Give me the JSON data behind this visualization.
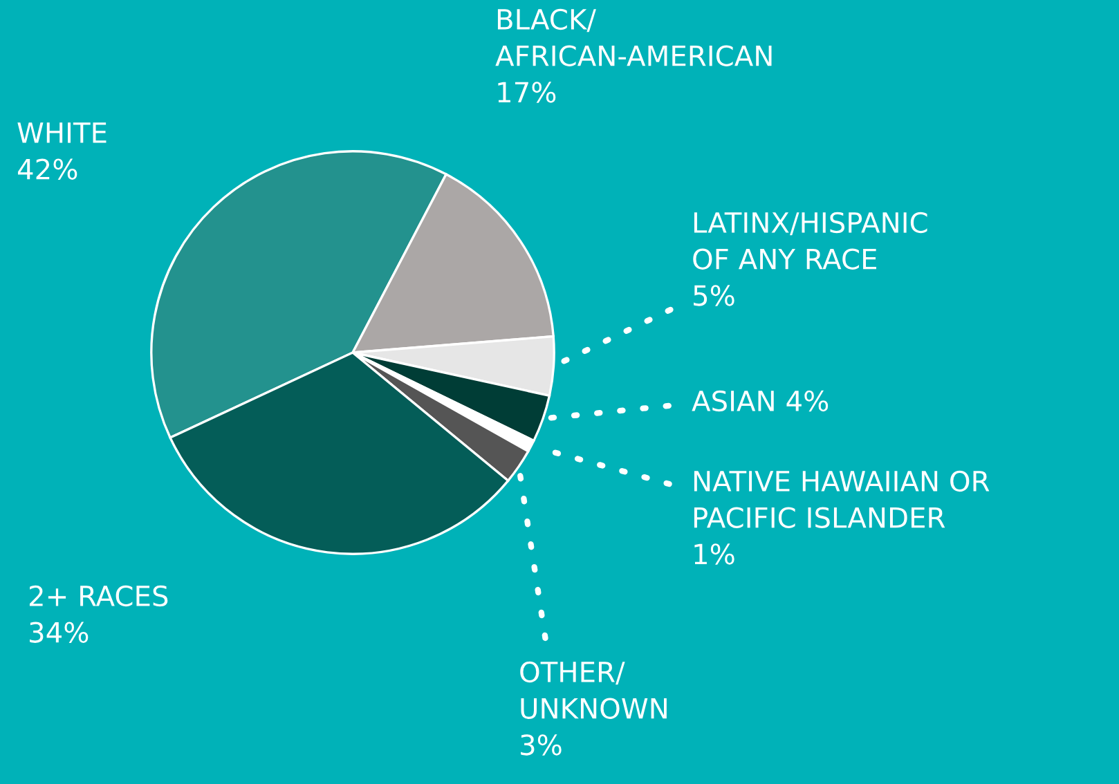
{
  "chart_data": {
    "type": "pie",
    "categories": [
      "WHITE",
      "BLACK/\nAFRICAN-AMERICAN",
      "LATINX/HISPANIC\nOF ANY RACE",
      "ASIAN",
      "NATIVE HAWAIIAN OR\nPACIFIC ISLANDER",
      "OTHER/\nUNKNOWN",
      "2+ RACES"
    ],
    "values": [
      42,
      17,
      5,
      4,
      1,
      3,
      34
    ],
    "value_labels": [
      "42%",
      "17%",
      "5%",
      "4%",
      "1%",
      "3%",
      "34%"
    ],
    "colors": [
      "#23928e",
      "#aba7a6",
      "#e6e6e6",
      "#003d36",
      "#ffffff",
      "#555555",
      "#045d58"
    ]
  }
}
